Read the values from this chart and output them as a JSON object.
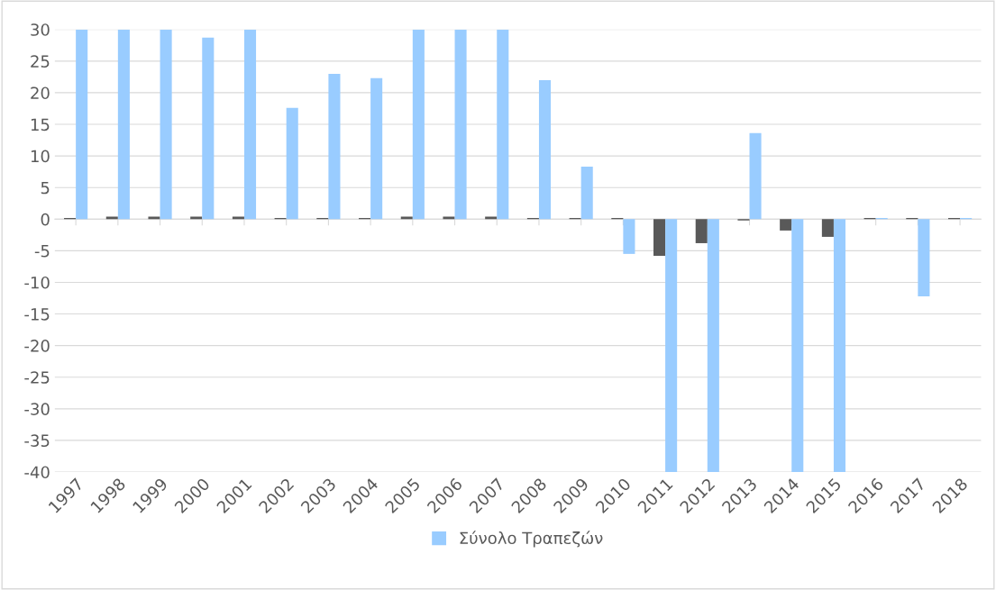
{
  "chart_data": {
    "type": "bar",
    "categories": [
      "1997",
      "1998",
      "1999",
      "2000",
      "2001",
      "2002",
      "2003",
      "2004",
      "2005",
      "2006",
      "2007",
      "2008",
      "2009",
      "2010",
      "2011",
      "2012",
      "2013",
      "2014",
      "2015",
      "2016",
      "2017",
      "2018"
    ],
    "series": [
      {
        "color": "#595959",
        "values": [
          0.2,
          0.4,
          0.4,
          0.4,
          0.4,
          0.2,
          0.2,
          0.2,
          0.4,
          0.4,
          0.4,
          0.2,
          0.2,
          0.2,
          -5.8,
          -3.8,
          -0.2,
          -1.8,
          -2.8,
          0.2,
          0.2,
          0.2
        ]
      },
      {
        "name": "Σύνολο Τραπεζών",
        "color": "#99ccff",
        "values": [
          30,
          30,
          30,
          28.7,
          30,
          17.6,
          23,
          22.3,
          30,
          30,
          30,
          22,
          8.3,
          -5.5,
          -40,
          -40,
          13.6,
          -40,
          -40,
          0.2,
          -12.2,
          0.2
        ]
      }
    ],
    "ylim": [
      -40,
      30
    ],
    "yticks": [
      -40,
      -35,
      -30,
      -25,
      -20,
      -15,
      -10,
      -5,
      0,
      5,
      10,
      15,
      20,
      25,
      30
    ],
    "grid": "y",
    "legend": "bottom"
  }
}
